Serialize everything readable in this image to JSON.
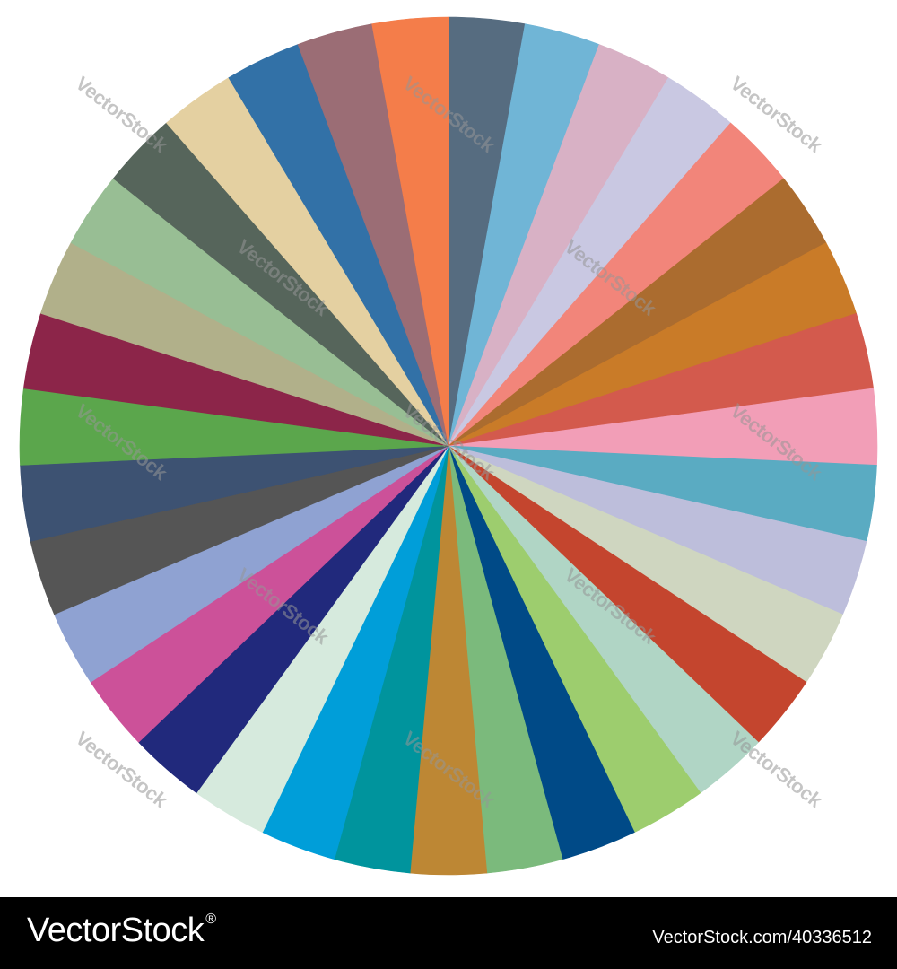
{
  "image": {
    "segment_colors": [
      "#566c80",
      "#70b5d6",
      "#d8b1c5",
      "#c9c8e2",
      "#f2857a",
      "#ab6c2f",
      "#c97b28",
      "#d35a4d",
      "#f29eb7",
      "#5aabc2",
      "#bdbedb",
      "#cfd6c0",
      "#c4452e",
      "#b0d5c5",
      "#9dcd6e",
      "#004a87",
      "#7bba7c",
      "#bd8734",
      "#00949d",
      "#009ed9",
      "#d6eadd",
      "#21297c",
      "#cc5199",
      "#8fa2d2",
      "#555555",
      "#3d5272",
      "#5ba64c",
      "#8c2549",
      "#b1b08a",
      "#98be94",
      "#56655b",
      "#e4d0a1",
      "#3271a7",
      "#9b6d75",
      "#f47d4a"
    ]
  },
  "watermark": {
    "text": "VectorStock"
  },
  "footer": {
    "brand": "VectorStock",
    "reg_mark": "®",
    "credit": "VectorStock.com/40336512"
  }
}
